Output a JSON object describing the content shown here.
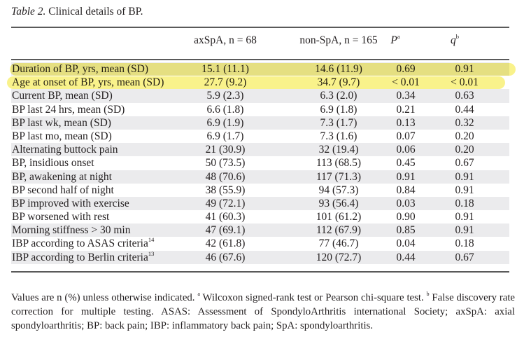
{
  "caption": {
    "label": "Table 2.",
    "text": " Clinical details of BP."
  },
  "columns": {
    "label": "",
    "axspa": "axSpA, n = 68",
    "nonspa": "non-SpA, n = 165",
    "p": "P",
    "p_sup": "a",
    "q": "q",
    "q_sup": "b"
  },
  "highlight_color": "#f7ee64",
  "rows": [
    {
      "label": "Duration of BP, yrs, mean (SD)",
      "sup": "",
      "axspa": "15.1 (11.1)",
      "nonspa": "14.6 (11.9)",
      "p": "0.69",
      "q": "0.91",
      "highlighted": true
    },
    {
      "label": "Age at onset of BP, yrs, mean (SD)",
      "sup": "",
      "axspa": "27.7 (9.2)",
      "nonspa": "34.7 (9.7)",
      "p": "< 0.01",
      "q": "< 0.01",
      "highlighted": true
    },
    {
      "label": "Current BP, mean (SD)",
      "sup": "",
      "axspa": "5.9 (2.3)",
      "nonspa": "6.3 (2.0)",
      "p": "0.34",
      "q": "0.63",
      "highlighted": false
    },
    {
      "label": "BP last 24 hrs, mean (SD)",
      "sup": "",
      "axspa": "6.6 (1.8)",
      "nonspa": "6.9 (1.8)",
      "p": "0.21",
      "q": "0.44",
      "highlighted": false
    },
    {
      "label": "BP last wk, mean (SD)",
      "sup": "",
      "axspa": "6.9 (1.9)",
      "nonspa": "7.3 (1.7)",
      "p": "0.13",
      "q": "0.32",
      "highlighted": false
    },
    {
      "label": "BP last mo, mean (SD)",
      "sup": "",
      "axspa": "6.9 (1.7)",
      "nonspa": "7.3 (1.6)",
      "p": "0.07",
      "q": "0.20",
      "highlighted": false
    },
    {
      "label": "Alternating buttock pain",
      "sup": "",
      "axspa": "21 (30.9)",
      "nonspa": "32 (19.4)",
      "p": "0.06",
      "q": "0.20",
      "highlighted": false
    },
    {
      "label": "BP, insidious onset",
      "sup": "",
      "axspa": "50 (73.5)",
      "nonspa": "113 (68.5)",
      "p": "0.45",
      "q": "0.67",
      "highlighted": false
    },
    {
      "label": "BP, awakening at night",
      "sup": "",
      "axspa": "48 (70.6)",
      "nonspa": "117 (71.3)",
      "p": "0.91",
      "q": "0.91",
      "highlighted": false
    },
    {
      "label": "BP second half of night",
      "sup": "",
      "axspa": "38 (55.9)",
      "nonspa": "94 (57.3)",
      "p": "0.84",
      "q": "0.91",
      "highlighted": false
    },
    {
      "label": "BP improved with exercise",
      "sup": "",
      "axspa": "49 (72.1)",
      "nonspa": "93 (56.4)",
      "p": "0.03",
      "q": "0.18",
      "highlighted": false
    },
    {
      "label": "BP worsened with rest",
      "sup": "",
      "axspa": "41 (60.3)",
      "nonspa": "101 (61.2)",
      "p": "0.90",
      "q": "0.91",
      "highlighted": false
    },
    {
      "label": "Morning stiffness > 30 min",
      "sup": "",
      "axspa": "47 (69.1)",
      "nonspa": "112 (67.9)",
      "p": "0.85",
      "q": "0.91",
      "highlighted": false
    },
    {
      "label": "IBP according to ASAS criteria",
      "sup": "14",
      "axspa": "42 (61.8)",
      "nonspa": "77 (46.7)",
      "p": "0.04",
      "q": "0.18",
      "highlighted": false
    },
    {
      "label": "IBP according to Berlin criteria",
      "sup": "13",
      "axspa": "46 (67.6)",
      "nonspa": "120 (72.7)",
      "p": "0.44",
      "q": "0.67",
      "highlighted": false
    }
  ],
  "footnote": {
    "part1": "Values are n (%) unless otherwise indicated. ",
    "sup_a": "a",
    "part2": " Wilcoxon signed-rank test or Pearson chi-square test. ",
    "sup_b": "b",
    "part3": " False discovery rate correction for multiple testing. ASAS: Assessment of SpondyloArthritis international Society; axSpA: axial spondyloarthritis; BP: back pain; IBP: inflammatory back pain; SpA: spondyloarthritis."
  }
}
